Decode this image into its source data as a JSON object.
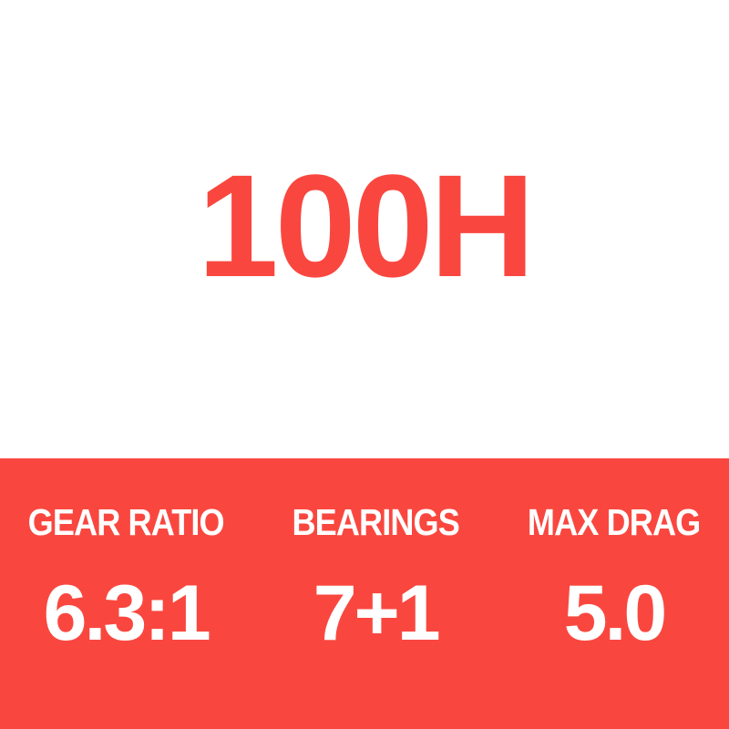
{
  "title": {
    "model": "100H"
  },
  "specs": [
    {
      "label": "GEAR RATIO",
      "value": "6.3:1"
    },
    {
      "label": "BEARINGS",
      "value": "7+1"
    },
    {
      "label": "MAX DRAG",
      "value": "5.0"
    }
  ],
  "colors": {
    "accent_red": "#F9473F",
    "band_background": "#F9473F",
    "band_text": "#FFFFFF",
    "page_background": "#FFFFFF"
  }
}
